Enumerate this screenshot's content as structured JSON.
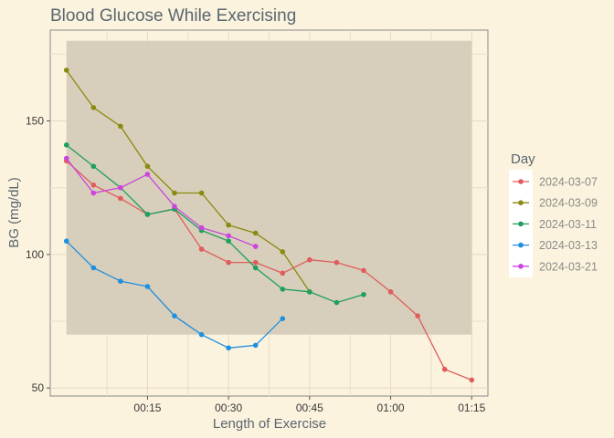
{
  "chart_data": {
    "type": "line",
    "title": "Blood Glucose While Exercising",
    "xlabel": "Length of Exercise",
    "ylabel": "BG (mg/dL)",
    "x_unit": "minutes",
    "xlim": [
      -3,
      78
    ],
    "ylim": [
      47,
      184
    ],
    "x_ticks": [
      {
        "value": 15,
        "label": "00:15"
      },
      {
        "value": 30,
        "label": "00:30"
      },
      {
        "value": 45,
        "label": "00:45"
      },
      {
        "value": 60,
        "label": "01:00"
      },
      {
        "value": 75,
        "label": "01:15"
      }
    ],
    "y_ticks": [
      {
        "value": 50,
        "label": "50"
      },
      {
        "value": 100,
        "label": "100"
      },
      {
        "value": 150,
        "label": "150"
      }
    ],
    "target_range": {
      "x": [
        0,
        75
      ],
      "y": [
        70,
        180
      ],
      "color": "#d7cfbb"
    },
    "grid": true,
    "legend": {
      "title": "Day",
      "position": "right"
    },
    "series": [
      {
        "name": "2024-03-07",
        "color": "#e05c5c",
        "x": [
          0,
          5,
          10,
          15,
          20,
          25,
          30,
          35,
          40,
          45,
          50,
          55,
          60,
          65,
          70,
          75
        ],
        "y": [
          135,
          126,
          121,
          115,
          117,
          102,
          97,
          97,
          93,
          98,
          97,
          94,
          86,
          77,
          57,
          53
        ]
      },
      {
        "name": "2024-03-09",
        "color": "#8a8a10",
        "x": [
          0,
          5,
          10,
          15,
          20,
          25,
          30,
          35,
          40,
          45
        ],
        "y": [
          169,
          155,
          148,
          133,
          123,
          123,
          111,
          108,
          101,
          86
        ]
      },
      {
        "name": "2024-03-11",
        "color": "#1f9e5c",
        "x": [
          0,
          5,
          10,
          15,
          20,
          25,
          30,
          35,
          40,
          45,
          50,
          55
        ],
        "y": [
          141,
          133,
          125,
          115,
          117,
          109,
          105,
          95,
          87,
          86,
          82,
          85
        ]
      },
      {
        "name": "2024-03-13",
        "color": "#1f8fe0",
        "x": [
          0,
          5,
          10,
          15,
          20,
          25,
          30,
          35,
          40
        ],
        "y": [
          105,
          95,
          90,
          88,
          77,
          70,
          65,
          66,
          76
        ]
      },
      {
        "name": "2024-03-21",
        "color": "#cc44dd",
        "x": [
          0,
          5,
          10,
          15,
          20,
          25,
          30,
          35
        ],
        "y": [
          136,
          123,
          125,
          130,
          118,
          110,
          107,
          103
        ]
      }
    ]
  }
}
